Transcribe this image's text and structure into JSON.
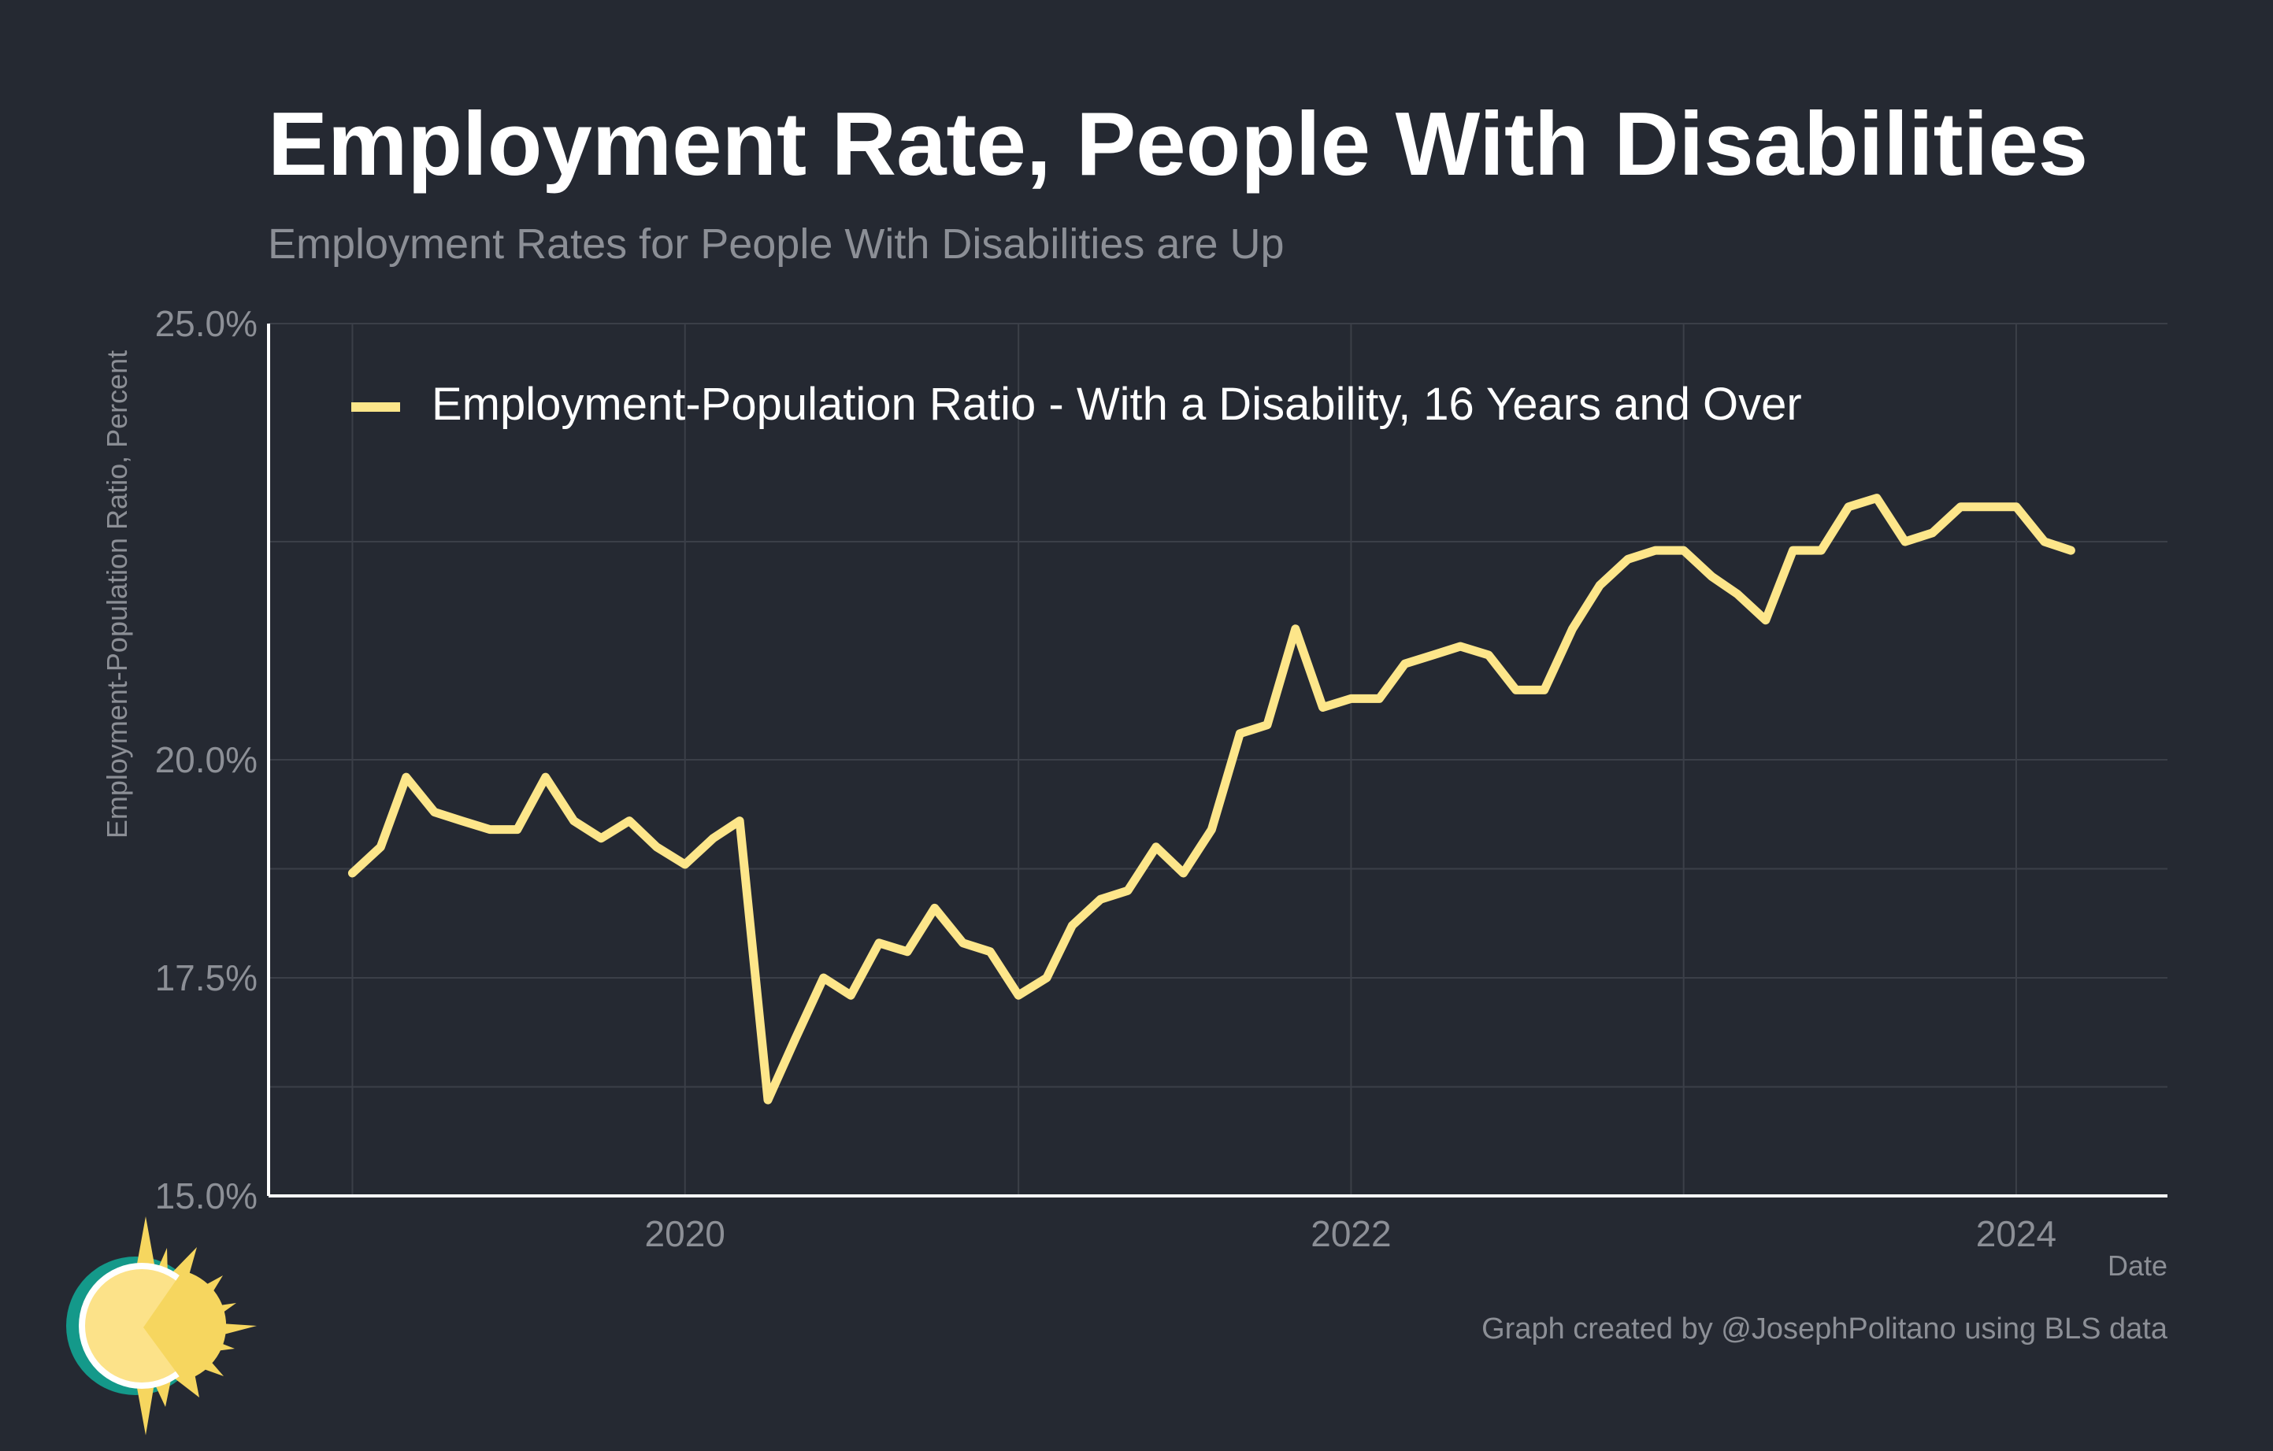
{
  "colors": {
    "background": "#252932",
    "series": "#fde68a",
    "grid": "#3b3f48",
    "axis": "#ffffff",
    "muted_text": "#8c8f96",
    "logo_teal": "#14998a",
    "logo_sun": "#fce289",
    "logo_sun_dark": "#f6d65f"
  },
  "logo": {
    "icon": "sun-logo-icon"
  },
  "chart_data": {
    "type": "line",
    "title": "Employment Rate, People With Disabilities",
    "subtitle": "Employment Rates for People With Disabilities are Up",
    "xlabel": "Date",
    "ylabel": "Employment-Population Ratio, Percent",
    "caption": "Graph created by @JosephPolitano using BLS data",
    "xlim": [
      "2018-10-01",
      "2024-06-15"
    ],
    "ylim": [
      15.0,
      25.0
    ],
    "y_ticks": [
      15.0,
      17.5,
      20.0,
      25.0
    ],
    "y_tick_labels": [
      "15.0%",
      "17.5%",
      "20.0%",
      "25.0%"
    ],
    "y_gridlines": [
      15.0,
      16.25,
      17.5,
      18.75,
      20.0,
      22.5,
      25.0
    ],
    "x_ticks": [
      "2020-01-01",
      "2022-01-01",
      "2024-01-01"
    ],
    "x_tick_labels": [
      "2020",
      "2022",
      "2024"
    ],
    "x_gridlines": [
      "2019-01-01",
      "2020-01-01",
      "2021-01-01",
      "2022-01-01",
      "2023-01-01",
      "2024-01-01"
    ],
    "grid": true,
    "legend_position": "top-left",
    "series": [
      {
        "name": "Employment-Population Ratio - With a Disability, 16 Years and Over",
        "color": "#fde68a",
        "x": [
          "2019-01-01",
          "2019-02-01",
          "2019-03-01",
          "2019-04-01",
          "2019-05-01",
          "2019-06-01",
          "2019-07-01",
          "2019-08-01",
          "2019-09-01",
          "2019-10-01",
          "2019-11-01",
          "2019-12-01",
          "2020-01-01",
          "2020-02-01",
          "2020-03-01",
          "2020-04-01",
          "2020-05-01",
          "2020-06-01",
          "2020-07-01",
          "2020-08-01",
          "2020-09-01",
          "2020-10-01",
          "2020-11-01",
          "2020-12-01",
          "2021-01-01",
          "2021-02-01",
          "2021-03-01",
          "2021-04-01",
          "2021-05-01",
          "2021-06-01",
          "2021-07-01",
          "2021-08-01",
          "2021-09-01",
          "2021-10-01",
          "2021-11-01",
          "2021-12-01",
          "2022-01-01",
          "2022-02-01",
          "2022-03-01",
          "2022-04-01",
          "2022-05-01",
          "2022-06-01",
          "2022-07-01",
          "2022-08-01",
          "2022-09-01",
          "2022-10-01",
          "2022-11-01",
          "2022-12-01",
          "2023-01-01",
          "2023-02-01",
          "2023-03-01",
          "2023-04-01",
          "2023-05-01",
          "2023-06-01",
          "2023-07-01",
          "2023-08-01",
          "2023-09-01",
          "2023-10-01",
          "2023-11-01",
          "2023-12-01",
          "2024-01-01",
          "2024-02-01",
          "2024-03-01"
        ],
        "values": [
          18.7,
          19.0,
          19.8,
          19.4,
          19.3,
          19.2,
          19.2,
          19.8,
          19.3,
          19.1,
          19.3,
          19.0,
          18.8,
          19.1,
          19.3,
          16.1,
          16.8,
          17.5,
          17.3,
          17.9,
          17.8,
          18.3,
          17.9,
          17.8,
          17.3,
          17.5,
          18.1,
          18.4,
          18.5,
          19.0,
          18.7,
          19.2,
          20.3,
          20.4,
          21.5,
          20.6,
          20.7,
          20.7,
          21.1,
          21.2,
          21.3,
          21.2,
          20.8,
          20.8,
          21.5,
          22.0,
          22.3,
          22.4,
          22.4,
          22.1,
          21.9,
          21.6,
          22.4,
          22.4,
          22.9,
          23.0,
          22.5,
          22.6,
          22.9,
          22.9,
          22.9,
          22.5,
          22.4
        ]
      }
    ]
  }
}
